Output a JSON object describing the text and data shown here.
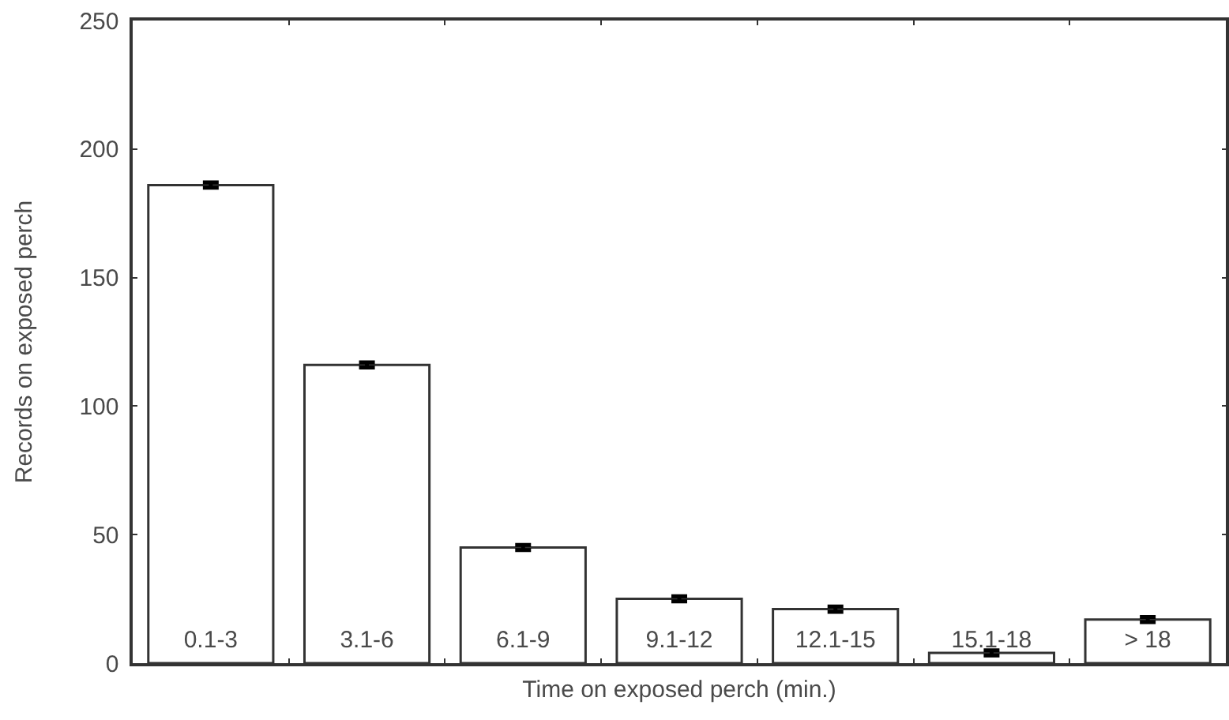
{
  "chart_data": {
    "type": "bar",
    "xlabel": "Time on exposed perch (min.)",
    "ylabel": "Records on exposed perch",
    "categories": [
      "0.1-3",
      "3.1-6",
      "6.1-9",
      "9.1-12",
      "12.1-15",
      "15.1-18",
      "> 18"
    ],
    "values": [
      186,
      116,
      45,
      25,
      21,
      4,
      17
    ],
    "errors": [
      1,
      1,
      1,
      1,
      1,
      1,
      1
    ],
    "color": "#ffffff",
    "ylim": [
      0,
      250
    ],
    "yticks": [
      0,
      50,
      100,
      150,
      200,
      250
    ]
  }
}
